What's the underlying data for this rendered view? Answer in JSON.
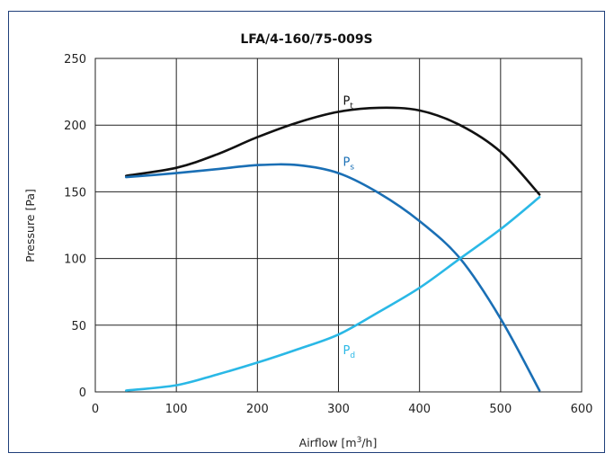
{
  "chart_data": {
    "type": "line",
    "title": "LFA/4-160/75-009S",
    "xlabel": {
      "base": "Airflow [m",
      "sup": "3",
      "tail": "/h]"
    },
    "ylabel": "Pressure [Pa]",
    "xlim": [
      0,
      600
    ],
    "ylim": [
      0,
      250
    ],
    "xticks": [
      "0",
      "100",
      "200",
      "300",
      "400",
      "500",
      "600"
    ],
    "yticks": [
      "0",
      "50",
      "100",
      "150",
      "200",
      "250"
    ],
    "grid": true,
    "series": [
      {
        "name": {
          "base": "P",
          "sub": "t"
        },
        "color": "#111111",
        "x": [
          38,
          100,
          150,
          200,
          250,
          300,
          350,
          400,
          450,
          500,
          548
        ],
        "y": [
          162,
          168,
          178,
          191,
          202,
          210,
          213,
          211,
          200,
          180,
          148
        ]
      },
      {
        "name": {
          "base": "P",
          "sub": "s"
        },
        "color": "#1a6fb5",
        "x": [
          38,
          100,
          150,
          200,
          250,
          300,
          350,
          400,
          450,
          500,
          548
        ],
        "y": [
          161,
          164,
          167,
          170,
          170,
          164,
          149,
          128,
          100,
          55,
          1
        ]
      },
      {
        "name": {
          "base": "P",
          "sub": "d"
        },
        "color": "#2ab8e6",
        "x": [
          38,
          100,
          150,
          200,
          250,
          300,
          350,
          400,
          450,
          500,
          548
        ],
        "y": [
          1,
          5,
          13,
          22,
          32,
          43,
          60,
          78,
          100,
          122,
          146
        ]
      }
    ]
  }
}
